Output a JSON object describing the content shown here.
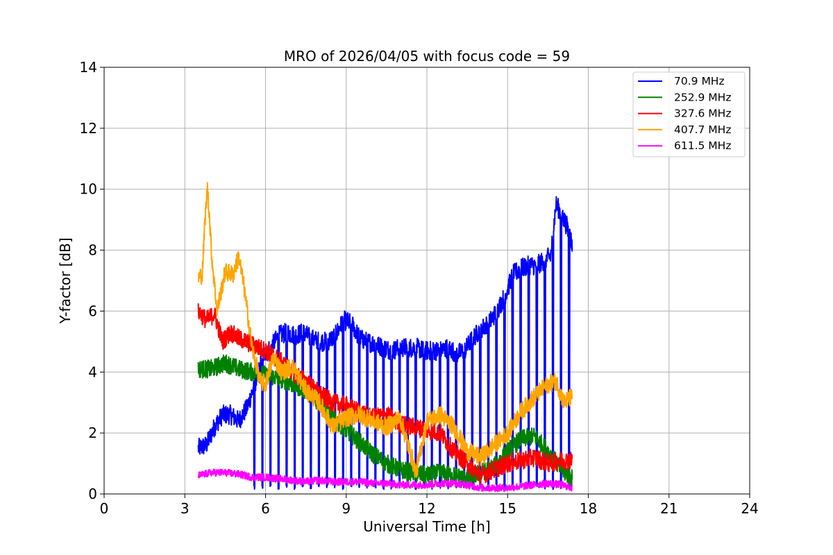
{
  "chart_data": {
    "type": "line",
    "title": "MRO of 2026/04/05 with focus code = 59",
    "xlabel": "Universal Time [h]",
    "ylabel": "Y-factor [dB]",
    "xlim": [
      0,
      24
    ],
    "ylim": [
      0,
      14
    ],
    "xticks": [
      0,
      3,
      6,
      9,
      12,
      15,
      18,
      21,
      24
    ],
    "yticks": [
      0,
      2,
      4,
      6,
      8,
      10,
      12,
      14
    ],
    "grid": true,
    "legend_position": "top-right",
    "series": [
      {
        "name": " 70.9 MHz",
        "color": "#0000ff",
        "x": [
          3.5,
          3.8,
          4.1,
          4.4,
          4.7,
          5.0,
          5.3,
          5.6,
          5.9,
          6.2,
          6.5,
          6.8,
          7.1,
          7.4,
          7.7,
          8.0,
          8.3,
          8.6,
          8.9,
          9.2,
          9.5,
          9.8,
          10.1,
          10.4,
          10.7,
          11.0,
          11.3,
          11.6,
          11.9,
          12.2,
          12.5,
          12.8,
          13.1,
          13.4,
          13.7,
          14.0,
          14.3,
          14.6,
          14.9,
          15.2,
          15.5,
          15.8,
          16.1,
          16.4,
          16.6,
          16.8,
          17.0,
          17.2,
          17.4
        ],
        "y": [
          1.5,
          1.6,
          2.2,
          2.6,
          2.6,
          2.4,
          2.8,
          3.6,
          4.5,
          4.8,
          5.2,
          5.3,
          5.2,
          5.3,
          5.1,
          5.0,
          5.0,
          5.2,
          5.7,
          5.6,
          5.1,
          5.0,
          4.9,
          4.8,
          4.7,
          4.8,
          4.8,
          4.8,
          4.7,
          4.7,
          4.7,
          4.8,
          4.6,
          4.7,
          5.1,
          5.4,
          5.6,
          6.0,
          6.5,
          7.2,
          7.4,
          7.5,
          7.5,
          7.7,
          7.8,
          9.5,
          9.2,
          8.8,
          8.2
        ],
        "dip_every_h": 0.3,
        "dip_value": 0.15
      },
      {
        "name": "252.9 MHz",
        "color": "#008000",
        "x": [
          3.5,
          4.0,
          4.5,
          5.0,
          5.5,
          6.0,
          6.5,
          7.0,
          7.5,
          8.0,
          8.5,
          9.0,
          9.5,
          10.0,
          10.5,
          11.0,
          11.5,
          12.0,
          12.5,
          13.0,
          13.5,
          14.0,
          14.5,
          15.0,
          15.5,
          16.0,
          16.5,
          17.0,
          17.4
        ],
        "y": [
          4.1,
          4.1,
          4.3,
          4.1,
          4.0,
          3.9,
          3.8,
          3.6,
          3.4,
          3.0,
          2.5,
          2.1,
          1.7,
          1.3,
          1.0,
          0.8,
          0.7,
          0.6,
          0.7,
          0.6,
          0.5,
          0.7,
          0.9,
          1.4,
          1.8,
          1.9,
          1.4,
          0.8,
          0.5
        ]
      },
      {
        "name": "327.6 MHz",
        "color": "#ff0000",
        "x": [
          3.5,
          3.8,
          4.1,
          4.4,
          4.7,
          5.0,
          5.5,
          6.0,
          6.5,
          7.0,
          7.5,
          8.0,
          8.5,
          9.0,
          9.5,
          10.0,
          10.5,
          11.0,
          11.5,
          12.0,
          12.5,
          13.0,
          13.5,
          14.0,
          14.5,
          15.0,
          15.5,
          16.0,
          16.5,
          17.0,
          17.4
        ],
        "y": [
          6.0,
          5.7,
          5.9,
          5.0,
          5.3,
          5.1,
          4.9,
          4.7,
          4.4,
          4.0,
          3.7,
          3.3,
          3.0,
          2.9,
          2.7,
          2.5,
          2.6,
          2.3,
          2.2,
          2.1,
          2.0,
          1.4,
          1.0,
          0.6,
          0.8,
          1.0,
          1.1,
          1.2,
          1.0,
          1.1,
          1.1
        ]
      },
      {
        "name": "407.7 MHz",
        "color": "#ffa500",
        "x": [
          3.5,
          3.65,
          3.75,
          3.85,
          4.0,
          4.2,
          4.5,
          4.8,
          5.0,
          5.2,
          5.5,
          5.8,
          6.0,
          6.3,
          6.6,
          7.0,
          7.5,
          8.0,
          8.5,
          9.0,
          9.5,
          10.0,
          10.5,
          11.0,
          11.3,
          11.6,
          12.0,
          12.5,
          13.0,
          13.5,
          14.0,
          14.5,
          15.0,
          15.5,
          16.0,
          16.5,
          16.8,
          17.1,
          17.4
        ],
        "y": [
          7.1,
          7.2,
          9.0,
          10.1,
          7.8,
          6.0,
          7.3,
          7.2,
          7.8,
          6.8,
          4.8,
          3.7,
          3.6,
          4.5,
          4.0,
          4.2,
          3.4,
          3.0,
          2.2,
          2.5,
          2.6,
          2.4,
          2.2,
          2.5,
          1.6,
          0.7,
          2.4,
          2.6,
          2.2,
          1.4,
          1.2,
          1.6,
          2.0,
          2.7,
          3.2,
          3.6,
          3.7,
          3.0,
          3.2
        ]
      },
      {
        "name": "611.5 MHz",
        "color": "#ff00ff",
        "x": [
          3.5,
          4.0,
          4.5,
          5.0,
          5.5,
          6.0,
          6.5,
          7.0,
          7.5,
          8.0,
          8.5,
          9.0,
          9.5,
          10.0,
          10.5,
          11.0,
          11.5,
          12.0,
          12.5,
          13.0,
          13.5,
          14.0,
          14.5,
          15.0,
          15.5,
          16.0,
          16.5,
          17.0,
          17.4
        ],
        "y": [
          0.6,
          0.7,
          0.7,
          0.65,
          0.55,
          0.55,
          0.5,
          0.45,
          0.4,
          0.45,
          0.4,
          0.4,
          0.4,
          0.35,
          0.35,
          0.3,
          0.3,
          0.3,
          0.35,
          0.35,
          0.3,
          0.2,
          0.2,
          0.2,
          0.25,
          0.3,
          0.35,
          0.3,
          0.2
        ]
      }
    ]
  }
}
